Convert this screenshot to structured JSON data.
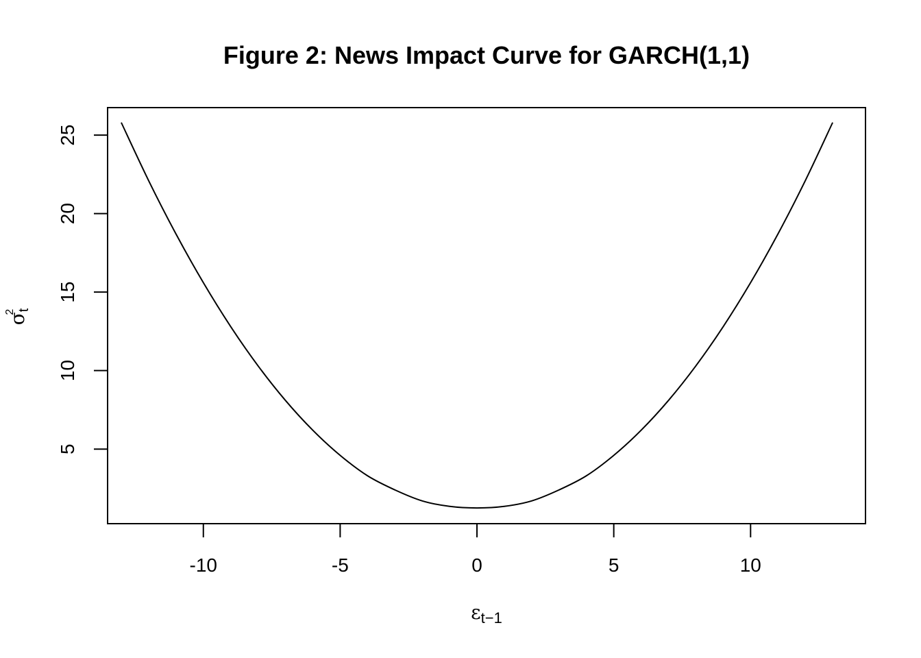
{
  "chart_data": {
    "type": "line",
    "title": "Figure 2: News Impact Curve for GARCH(1,1)",
    "xlabel": {
      "base": "ε",
      "sub": "t−1"
    },
    "ylabel": {
      "base": "σ",
      "sub": "t",
      "sup": "2"
    },
    "xlim": [
      -13.5,
      14.2
    ],
    "ylim": [
      0.25,
      26.75
    ],
    "xticks": [
      -10,
      -5,
      0,
      5,
      10
    ],
    "xtick_labels": [
      "-10",
      "-5",
      "0",
      "5",
      "10"
    ],
    "yticks": [
      5,
      10,
      15,
      20,
      25
    ],
    "ytick_labels": [
      "5",
      "10",
      "15",
      "20",
      "25"
    ],
    "grid": false,
    "legend": "none",
    "line_color": "#000000",
    "series": [
      {
        "x": [
          -13,
          -12,
          -11,
          -10,
          -9,
          -8,
          -7,
          -6,
          -5,
          -4,
          -3,
          -2,
          -1,
          0,
          1,
          2,
          3,
          4,
          5,
          6,
          7,
          8,
          9,
          10,
          11,
          12,
          13
        ],
        "y": [
          25.8,
          22.1,
          18.7,
          15.6,
          12.8,
          10.3,
          8.1,
          6.2,
          4.6,
          3.3,
          2.4,
          1.7,
          1.35,
          1.25,
          1.35,
          1.7,
          2.4,
          3.3,
          4.6,
          6.2,
          8.1,
          10.3,
          12.8,
          15.6,
          18.7,
          22.1,
          25.8
        ]
      }
    ]
  }
}
